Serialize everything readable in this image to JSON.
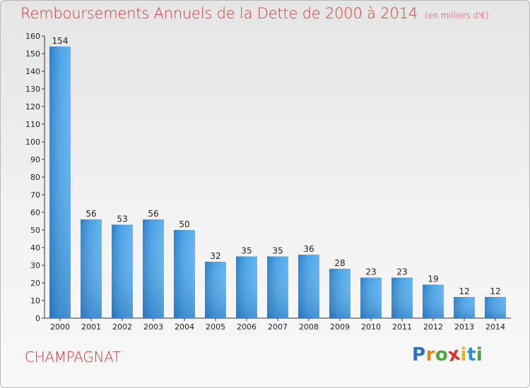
{
  "chart_data": {
    "type": "bar",
    "title": "Remboursements Annuels de la Dette de 2000 à 2014",
    "unit_note": "(en milliers d'€)",
    "categories": [
      "2000",
      "2001",
      "2002",
      "2003",
      "2004",
      "2005",
      "2006",
      "2007",
      "2008",
      "2009",
      "2010",
      "2011",
      "2012",
      "2013",
      "2014"
    ],
    "values": [
      154,
      56,
      53,
      56,
      50,
      32,
      35,
      35,
      36,
      28,
      23,
      23,
      19,
      12,
      12
    ],
    "ylim": [
      0,
      160
    ],
    "yticks": [
      0,
      10,
      20,
      30,
      40,
      50,
      60,
      70,
      80,
      90,
      100,
      110,
      120,
      130,
      140,
      150,
      160
    ],
    "xlabel": "",
    "ylabel": "",
    "grid": false,
    "bar_color": "#3b8fd6"
  },
  "commune": "CHAMPAGNAT",
  "logo": {
    "letters": [
      {
        "ch": "P",
        "color": "#2f6fc0"
      },
      {
        "ch": "r",
        "color": "#e08a1e"
      },
      {
        "ch": "o",
        "color": "#4aa63a"
      },
      {
        "ch": "x",
        "color": "#d9322f"
      },
      {
        "ch": "i",
        "color": "#e0b91e"
      },
      {
        "ch": "t",
        "color": "#2f8fd0"
      },
      {
        "ch": "i",
        "color": "#4aa63a"
      }
    ]
  }
}
